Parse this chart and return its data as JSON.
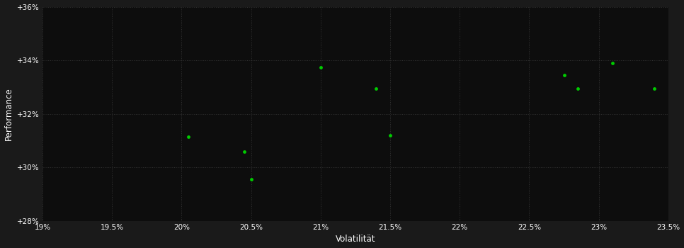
{
  "xlabel": "Volatilität",
  "ylabel": "Performance",
  "background_color": "#1a1a1a",
  "plot_bg_color": "#0d0d0d",
  "grid_color": "#333333",
  "point_color": "#00cc00",
  "text_color": "#ffffff",
  "xlim": [
    19.0,
    23.5
  ],
  "ylim": [
    28.0,
    36.0
  ],
  "xtick_values": [
    19.0,
    19.5,
    20.0,
    20.5,
    21.0,
    21.5,
    22.0,
    22.5,
    23.0,
    23.5
  ],
  "ytick_values": [
    28.0,
    30.0,
    32.0,
    34.0,
    36.0
  ],
  "points_x": [
    20.05,
    20.45,
    20.5,
    21.0,
    21.4,
    21.5,
    22.75,
    22.85,
    23.1,
    23.4
  ],
  "points_y": [
    31.15,
    30.6,
    29.55,
    33.75,
    32.95,
    31.2,
    33.45,
    32.95,
    33.9,
    32.95
  ]
}
